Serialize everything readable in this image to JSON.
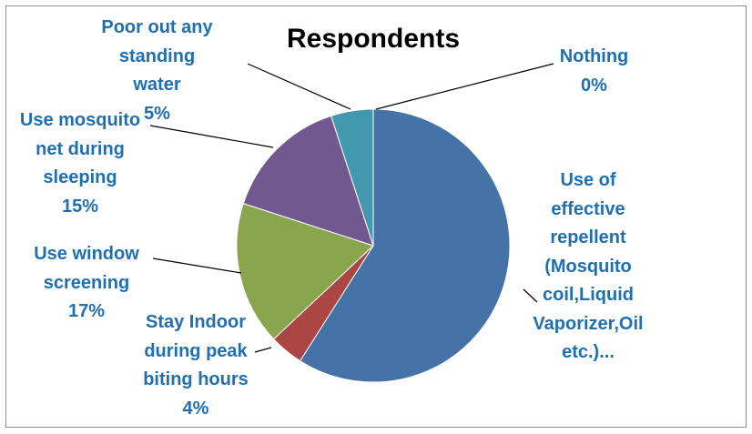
{
  "chart_data": {
    "type": "pie",
    "title": "Respondents",
    "slices": [
      {
        "label_lines": [
          "Use of",
          "effective",
          "repellent",
          "(Mosquito",
          "coil,Liquid",
          "Vaporizer,Oil",
          "etc.)..."
        ],
        "value": 59,
        "color": "#4572a7"
      },
      {
        "label_lines": [
          "Stay Indoor",
          "during peak",
          "biting hours",
          "4%"
        ],
        "value": 4,
        "color": "#aa4643"
      },
      {
        "label_lines": [
          "Use window",
          "screening",
          "17%"
        ],
        "value": 17,
        "color": "#89a54e"
      },
      {
        "label_lines": [
          "Use mosquito",
          "net during",
          "sleeping",
          "15%"
        ],
        "value": 15,
        "color": "#71588f"
      },
      {
        "label_lines": [
          "Poor out any",
          "standing",
          "water",
          "5%"
        ],
        "value": 5,
        "color": "#4198af"
      },
      {
        "label_lines": [
          "Nothing",
          "0%"
        ],
        "value": 0,
        "color": "#db843d"
      }
    ],
    "legend": "none",
    "label_color": "#1f6fb2"
  }
}
